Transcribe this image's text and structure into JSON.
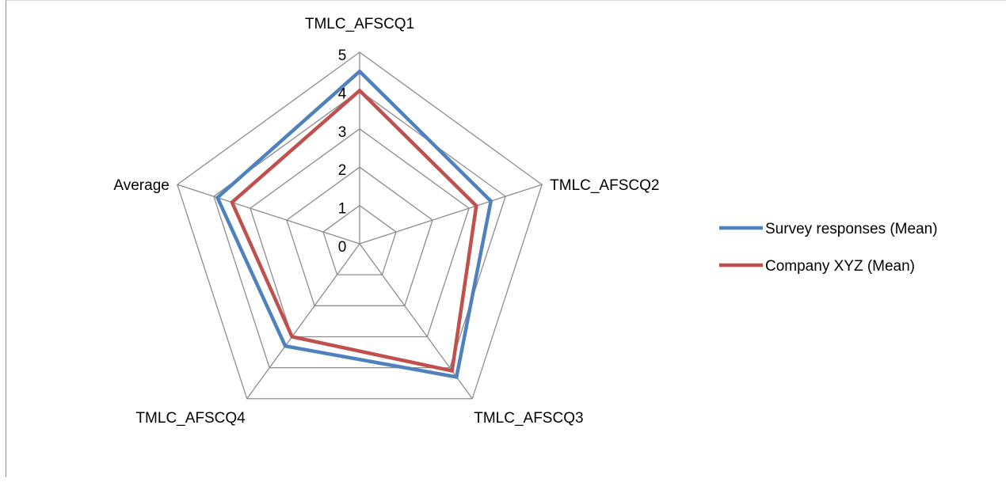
{
  "chart_data": {
    "type": "radar",
    "title": "",
    "categories": [
      "TMLC_AFSCQ1",
      "TMLC_AFSCQ2",
      "TMLC_AFSCQ3",
      "TMLC_AFSCQ4",
      "Average"
    ],
    "radial_range": [
      0,
      5
    ],
    "radial_ticks": [
      "0",
      "1",
      "2",
      "3",
      "4",
      "5"
    ],
    "grid": true,
    "legend_position": "right",
    "series": [
      {
        "name": "Survey responses  (Mean)",
        "color": "#4f81bd",
        "values": [
          4.5,
          3.6,
          4.3,
          3.3,
          3.9
        ]
      },
      {
        "name": "Company XYZ  (Mean)",
        "color": "#c0504d",
        "values": [
          4.0,
          3.2,
          4.1,
          3.0,
          3.5
        ]
      }
    ]
  }
}
